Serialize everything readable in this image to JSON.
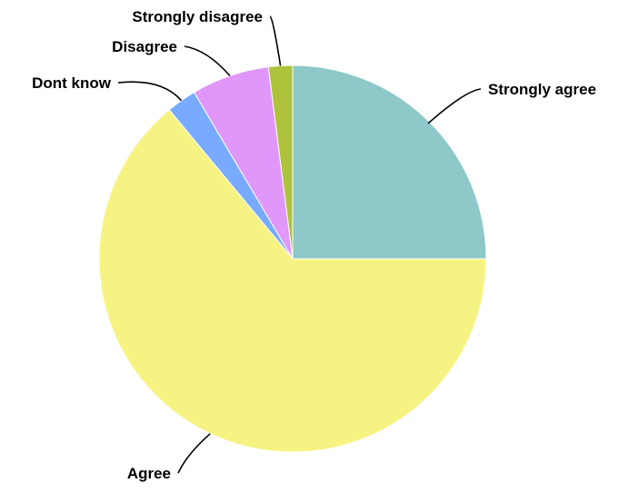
{
  "chart_data": {
    "type": "pie",
    "title": "",
    "slices": [
      {
        "label": "Strongly agree",
        "value": 25.0,
        "color": "#8ec8c8"
      },
      {
        "label": "Agree",
        "value": 64.0,
        "color": "#f7f383"
      },
      {
        "label": "Dont know",
        "value": 2.5,
        "color": "#78aaff"
      },
      {
        "label": "Disagree",
        "value": 6.5,
        "color": "#e196f9"
      },
      {
        "label": "Strongly disagree",
        "value": 2.0,
        "color": "#afc23b"
      }
    ],
    "start_angle_deg": 0,
    "direction": "clockwise",
    "legend": "none",
    "labels": "outside-with-leader-lines"
  }
}
